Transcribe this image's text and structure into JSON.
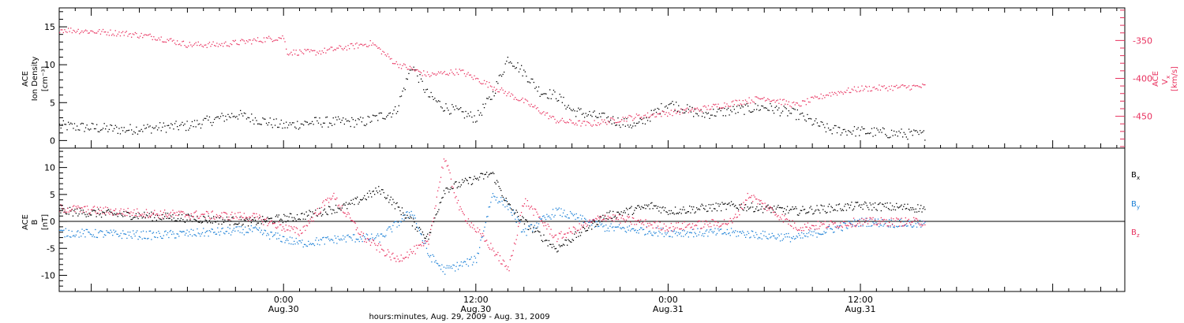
{
  "colors": {
    "black": "#000000",
    "pink": "#e8305e",
    "blue": "#1a7fd6"
  },
  "xaxis": {
    "start": "2009-08-29 10:00",
    "end": "2009-09-01 04:30",
    "ticks": [
      {
        "t": "2009-08-30 00:00",
        "time": "0:00",
        "date": "Aug.30"
      },
      {
        "t": "2009-08-30 12:00",
        "time": "12:00",
        "date": "Aug.30"
      },
      {
        "t": "2009-08-31 00:00",
        "time": "0:00",
        "date": "Aug.31"
      },
      {
        "t": "2009-08-31 12:00",
        "time": "12:00",
        "date": "Aug.31"
      }
    ],
    "title": "hours:minutes, Aug. 29, 2009 - Aug. 31, 2009"
  },
  "panel1": {
    "ylabel_left": {
      "line1": "ACE",
      "line2": "Ion Density",
      "line3": "[cm⁻³]"
    },
    "ylabel_right": {
      "line1": "ACE",
      "line2": "V",
      "sub": "x",
      "line3": "[km/s]"
    },
    "left_ticks": [
      "0",
      "5",
      "10",
      "15"
    ],
    "right_ticks": [
      "-350",
      "-400",
      "-450"
    ]
  },
  "panel2": {
    "ylabel": {
      "line1": "ACE",
      "line2": "B",
      "line3": "[nT]"
    },
    "ticks": [
      "10",
      "5",
      "0",
      "-5",
      "-10"
    ],
    "legend": [
      {
        "label": "B",
        "sub": "x",
        "color": "#000000"
      },
      {
        "label": "B",
        "sub": "y",
        "color": "#1a7fd6"
      },
      {
        "label": "B",
        "sub": "z",
        "color": "#e8305e"
      }
    ]
  },
  "chart_data": [
    {
      "type": "scatter",
      "title": "",
      "xlabel": "hours:minutes, Aug. 29, 2009 - Aug. 31, 2009",
      "ylabel": "ACE Ion Density [cm-3]",
      "ylim": [
        -1,
        17.5
      ],
      "y2label": "ACE Vx [km/s]",
      "y2lim": [
        -492,
        -307
      ],
      "series": [
        {
          "name": "Ion Density",
          "axis": "left",
          "color": "#000000",
          "x": [
            "2009-08-29 10:00",
            "2009-08-29 14:00",
            "2009-08-29 18:00",
            "2009-08-29 21:00",
            "2009-08-30 00:00",
            "2009-08-30 02:00",
            "2009-08-30 05:00",
            "2009-08-30 07:00",
            "2009-08-30 08:00",
            "2009-08-30 09:00",
            "2009-08-30 10:00",
            "2009-08-30 12:00",
            "2009-08-30 13:00",
            "2009-08-30 14:00",
            "2009-08-30 15:00",
            "2009-08-30 16:00",
            "2009-08-30 17:00",
            "2009-08-30 18:00",
            "2009-08-30 20:00",
            "2009-08-30 22:00",
            "2009-08-31 00:00",
            "2009-08-31 02:00",
            "2009-08-31 06:00",
            "2009-08-31 08:00",
            "2009-08-31 10:00",
            "2009-08-31 14:00",
            "2009-08-31 16:00"
          ],
          "y": [
            2,
            1.5,
            2,
            3.5,
            2,
            2.5,
            2.5,
            4,
            10,
            6,
            4.5,
            3,
            6,
            11,
            9,
            6.5,
            6,
            4,
            3,
            2,
            5,
            3.5,
            4.5,
            3.5,
            1.5,
            1,
            0.8
          ]
        },
        {
          "name": "Vx",
          "axis": "right",
          "color": "#e8305e",
          "x": [
            "2009-08-29 10:00",
            "2009-08-29 14:00",
            "2009-08-29 16:00",
            "2009-08-29 18:00",
            "2009-08-29 20:00",
            "2009-08-30 00:00",
            "2009-08-30 00:10",
            "2009-08-30 02:00",
            "2009-08-30 04:00",
            "2009-08-30 05:30",
            "2009-08-30 07:00",
            "2009-08-30 09:00",
            "2009-08-30 11:00",
            "2009-08-30 13:00",
            "2009-08-30 15:00",
            "2009-08-30 17:00",
            "2009-08-30 19:00",
            "2009-08-30 22:00",
            "2009-08-31 00:00",
            "2009-08-31 02:00",
            "2009-08-31 04:00",
            "2009-08-31 06:00",
            "2009-08-31 08:00",
            "2009-08-31 10:00",
            "2009-08-31 12:00",
            "2009-08-31 16:00"
          ],
          "y": [
            -335,
            -340,
            -345,
            -355,
            -355,
            -345,
            -365,
            -365,
            -358,
            -353,
            -380,
            -395,
            -390,
            -410,
            -430,
            -455,
            -460,
            -450,
            -445,
            -440,
            -432,
            -425,
            -435,
            -420,
            -413,
            -410
          ]
        }
      ]
    },
    {
      "type": "scatter",
      "title": "",
      "xlabel": "hours:minutes, Aug. 29, 2009 - Aug. 31, 2009",
      "ylabel": "ACE B [nT]",
      "ylim": [
        -13,
        13.6
      ],
      "series": [
        {
          "name": "Bx",
          "color": "#000000",
          "x": [
            "2009-08-29 10:00",
            "2009-08-29 16:00",
            "2009-08-29 22:00",
            "2009-08-30 01:00",
            "2009-08-30 04:00",
            "2009-08-30 06:00",
            "2009-08-30 08:00",
            "2009-08-30 09:00",
            "2009-08-30 10:00",
            "2009-08-30 12:00",
            "2009-08-30 13:00",
            "2009-08-30 14:00",
            "2009-08-30 15:00",
            "2009-08-30 17:00",
            "2009-08-30 20:00",
            "2009-08-30 23:00",
            "2009-08-31 00:00",
            "2009-08-31 04:00",
            "2009-08-31 08:00",
            "2009-08-31 12:00",
            "2009-08-31 16:00"
          ],
          "y": [
            2,
            1,
            0,
            1,
            3,
            6,
            0,
            -3,
            6,
            8,
            9,
            3,
            0,
            -5,
            1,
            3,
            2,
            3,
            2,
            3,
            2.5
          ]
        },
        {
          "name": "By",
          "color": "#1a7fd6",
          "x": [
            "2009-08-29 10:00",
            "2009-08-29 16:00",
            "2009-08-29 22:00",
            "2009-08-30 01:00",
            "2009-08-30 04:00",
            "2009-08-30 06:00",
            "2009-08-30 08:00",
            "2009-08-30 09:00",
            "2009-08-30 10:00",
            "2009-08-30 12:00",
            "2009-08-30 13:00",
            "2009-08-30 14:00",
            "2009-08-30 15:00",
            "2009-08-30 17:00",
            "2009-08-30 20:00",
            "2009-08-31 00:00",
            "2009-08-31 04:00",
            "2009-08-31 08:00",
            "2009-08-31 12:00",
            "2009-08-31 16:00"
          ],
          "y": [
            -2,
            -2.5,
            -1.5,
            -4,
            -3,
            -3,
            2,
            -6,
            -9,
            -7,
            5,
            3,
            -2,
            2,
            -1,
            -2,
            -2,
            -3,
            0,
            -0.5
          ]
        },
        {
          "name": "Bz",
          "color": "#e8305e",
          "x": [
            "2009-08-29 10:00",
            "2009-08-29 16:00",
            "2009-08-29 22:00",
            "2009-08-30 01:00",
            "2009-08-30 03:00",
            "2009-08-30 05:00",
            "2009-08-30 07:00",
            "2009-08-30 09:00",
            "2009-08-30 10:00",
            "2009-08-30 11:00",
            "2009-08-30 13:00",
            "2009-08-30 14:00",
            "2009-08-30 15:00",
            "2009-08-30 17:00",
            "2009-08-30 20:00",
            "2009-08-31 00:00",
            "2009-08-31 04:00",
            "2009-08-31 05:00",
            "2009-08-31 08:00",
            "2009-08-31 12:00",
            "2009-08-31 16:00"
          ],
          "y": [
            2.5,
            1.5,
            1,
            -2,
            5,
            -3,
            -7,
            -4,
            12,
            2,
            -5,
            -9,
            4,
            -3,
            1,
            -1,
            0,
            5,
            -1,
            0,
            0
          ]
        }
      ]
    }
  ]
}
